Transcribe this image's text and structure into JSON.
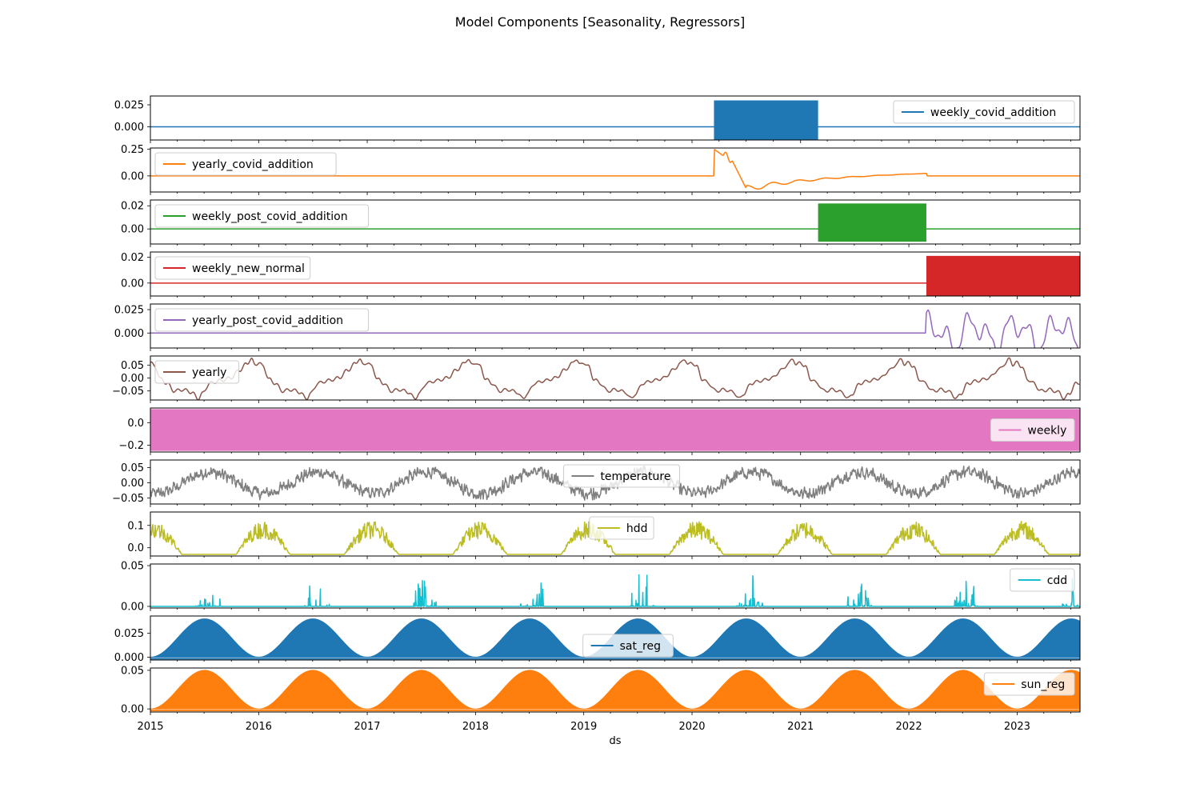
{
  "figure": {
    "title": "Model Components [Seasonality, Regressors]",
    "xlabel": "ds"
  },
  "chart_data": {
    "type": "line",
    "title": "Model Components [Seasonality, Regressors]",
    "xlabel": "ds",
    "xlim": [
      "2015-01-01",
      "2023-08-01"
    ],
    "x_ticks": [
      "2015",
      "2016",
      "2017",
      "2018",
      "2019",
      "2020",
      "2021",
      "2022",
      "2023"
    ],
    "grid": false,
    "panels": [
      {
        "series": [
          {
            "name": "weekly_covid_addition",
            "color": "#1f77b4"
          }
        ],
        "kind": "weekly_active",
        "active": [
          "2020-03-15",
          "2021-03-01"
        ],
        "amplitude": 0.03,
        "ylim": [
          -0.015,
          0.035
        ],
        "yticks": [
          {
            "v": 0.025,
            "label": "0.025"
          },
          {
            "v": 0.0,
            "label": "0.000"
          }
        ],
        "legend": "upper-right"
      },
      {
        "series": [
          {
            "name": "yearly_covid_addition",
            "color": "#ff7f0e"
          }
        ],
        "kind": "covid_yearly",
        "active": [
          "2020-03-15",
          "2022-03-01"
        ],
        "values_approx": [
          {
            "date": "2020-03-15",
            "value": 0.25
          },
          {
            "date": "2020-05-01",
            "value": 0.15
          },
          {
            "date": "2020-07-01",
            "value": -0.12
          },
          {
            "date": "2020-10-01",
            "value": -0.05
          },
          {
            "date": "2021-03-01",
            "value": -0.03
          },
          {
            "date": "2021-10-01",
            "value": 0.02
          },
          {
            "date": "2022-02-15",
            "value": 0.03
          }
        ],
        "ylim": [
          -0.15,
          0.26
        ],
        "yticks": [
          {
            "v": 0.25,
            "label": "0.25"
          },
          {
            "v": 0.0,
            "label": "0.00"
          }
        ],
        "legend": "upper-left"
      },
      {
        "series": [
          {
            "name": "weekly_post_covid_addition",
            "color": "#2ca02c"
          }
        ],
        "kind": "weekly_active",
        "active": [
          "2021-03-01",
          "2022-03-01"
        ],
        "amplitude": 0.022,
        "ylim": [
          -0.013,
          0.025
        ],
        "yticks": [
          {
            "v": 0.02,
            "label": "0.02"
          },
          {
            "v": 0.0,
            "label": "0.00"
          }
        ],
        "legend": "upper-left"
      },
      {
        "series": [
          {
            "name": "weekly_new_normal",
            "color": "#d62728"
          }
        ],
        "kind": "weekly_active",
        "active": [
          "2022-03-01",
          "2023-08-01"
        ],
        "amplitude": 0.021,
        "ylim": [
          -0.01,
          0.024
        ],
        "yticks": [
          {
            "v": 0.02,
            "label": "0.02"
          },
          {
            "v": 0.0,
            "label": "0.00"
          }
        ],
        "legend": "upper-left"
      },
      {
        "series": [
          {
            "name": "yearly_post_covid_addition",
            "color": "#9467bd"
          }
        ],
        "kind": "post_covid_yearly",
        "active": [
          "2022-03-01",
          "2023-08-01"
        ],
        "values_approx": [
          {
            "date": "2022-03-10",
            "value": 0.028
          },
          {
            "date": "2022-05-15",
            "value": 0.01
          },
          {
            "date": "2022-07-01",
            "value": -0.012
          },
          {
            "date": "2022-10-15",
            "value": 0.008
          },
          {
            "date": "2023-01-15",
            "value": 0.018
          },
          {
            "date": "2023-03-15",
            "value": 0.027
          },
          {
            "date": "2023-07-15",
            "value": -0.01
          }
        ],
        "ylim": [
          -0.016,
          0.031
        ],
        "yticks": [
          {
            "v": 0.025,
            "label": "0.025"
          },
          {
            "v": 0.0,
            "label": "0.000"
          }
        ],
        "legend": "upper-left"
      },
      {
        "series": [
          {
            "name": "yearly",
            "color": "#8c564b"
          }
        ],
        "kind": "yearly",
        "values_approx": [
          {
            "date": "Jan 1",
            "value": 0.04
          },
          {
            "date": "Feb 1",
            "value": 0.01
          },
          {
            "date": "Apr 1",
            "value": -0.05
          },
          {
            "date": "Jun 10",
            "value": -0.08
          },
          {
            "date": "Aug 1",
            "value": -0.02
          },
          {
            "date": "Nov 1",
            "value": 0.05
          },
          {
            "date": "Dec 25",
            "value": 0.075
          }
        ],
        "ylim": [
          -0.085,
          0.085
        ],
        "yticks": [
          {
            "v": 0.05,
            "label": "0.05"
          },
          {
            "v": 0.0,
            "label": "0.00"
          },
          {
            "v": -0.05,
            "label": "−0.05"
          }
        ],
        "legend": "upper-left"
      },
      {
        "series": [
          {
            "name": "weekly",
            "color": "#e377c2"
          }
        ],
        "kind": "weekly_full",
        "range": [
          -0.25,
          0.12
        ],
        "ylim": [
          -0.26,
          0.13
        ],
        "yticks": [
          {
            "v": 0.0,
            "label": "0.0"
          },
          {
            "v": -0.2,
            "label": "−0.2"
          }
        ],
        "legend": "right"
      },
      {
        "series": [
          {
            "name": "temperature",
            "color": "#7f7f7f"
          }
        ],
        "kind": "temperature",
        "values_approx": {
          "winter": -0.04,
          "summer": 0.035,
          "noise": 0.015
        },
        "ylim": [
          -0.07,
          0.075
        ],
        "yticks": [
          {
            "v": 0.05,
            "label": "0.05"
          },
          {
            "v": 0.0,
            "label": "0.00"
          },
          {
            "v": -0.05,
            "label": "−0.05"
          }
        ],
        "legend": "upper-center"
      },
      {
        "series": [
          {
            "name": "hdd",
            "color": "#bcbd22"
          }
        ],
        "kind": "hdd",
        "values_approx": {
          "winter_peak": 0.15,
          "summer_floor": -0.03
        },
        "ylim": [
          -0.037,
          0.16
        ],
        "yticks": [
          {
            "v": 0.1,
            "label": "0.1"
          },
          {
            "v": 0.0,
            "label": "0.0"
          }
        ],
        "legend": "upper-center"
      },
      {
        "series": [
          {
            "name": "cdd",
            "color": "#17becf"
          }
        ],
        "kind": "cdd",
        "values_approx": {
          "baseline": 0.0,
          "summer_peak": 0.05
        },
        "ylim": [
          -0.002,
          0.052
        ],
        "yticks": [
          {
            "v": 0.05,
            "label": "0.05"
          },
          {
            "v": 0.0,
            "label": "0.00"
          }
        ],
        "legend": "upper-right"
      },
      {
        "series": [
          {
            "name": "sat_reg",
            "color": "#1f77b4"
          }
        ],
        "kind": "annual_fill",
        "values_approx": {
          "min": 0.0,
          "max": 0.04
        },
        "ylim": [
          -0.003,
          0.043
        ],
        "yticks": [
          {
            "v": 0.025,
            "label": "0.025"
          },
          {
            "v": 0.0,
            "label": "0.000"
          }
        ],
        "legend": "lower-center"
      },
      {
        "series": [
          {
            "name": "sun_reg",
            "color": "#ff7f0e"
          }
        ],
        "kind": "annual_fill",
        "values_approx": {
          "min": 0.0,
          "max": 0.05
        },
        "ylim": [
          -0.004,
          0.053
        ],
        "yticks": [
          {
            "v": 0.05,
            "label": "0.05"
          },
          {
            "v": 0.0,
            "label": "0.00"
          }
        ],
        "legend": "upper-right"
      }
    ]
  }
}
